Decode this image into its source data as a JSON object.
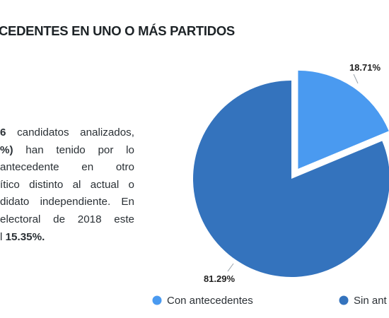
{
  "title": "CEDENTES EN UNO O MÁS PARTIDOS",
  "paragraph": {
    "line1_prefix": "6",
    "line1_rest": " candidatos analizados,",
    "line2_bold": "%)",
    "line2_rest": " han tenido por lo",
    "line3": "antecedente en otro",
    "line4": "ítico distinto al actual o",
    "line5": "didato independiente. En",
    "line6": "electoral de 2018 este",
    "line7_prefix": "l ",
    "line7_bold": "15.35%."
  },
  "chart_data": {
    "type": "pie",
    "categories": [
      "Con antecedentes",
      "Sin ant"
    ],
    "values": [
      18.71,
      81.29
    ],
    "labels": [
      "18.71%",
      "81.29%"
    ],
    "colors": [
      "#4a9af0",
      "#3473bd"
    ],
    "exploded": "Con antecedentes",
    "legend_position": "bottom"
  }
}
